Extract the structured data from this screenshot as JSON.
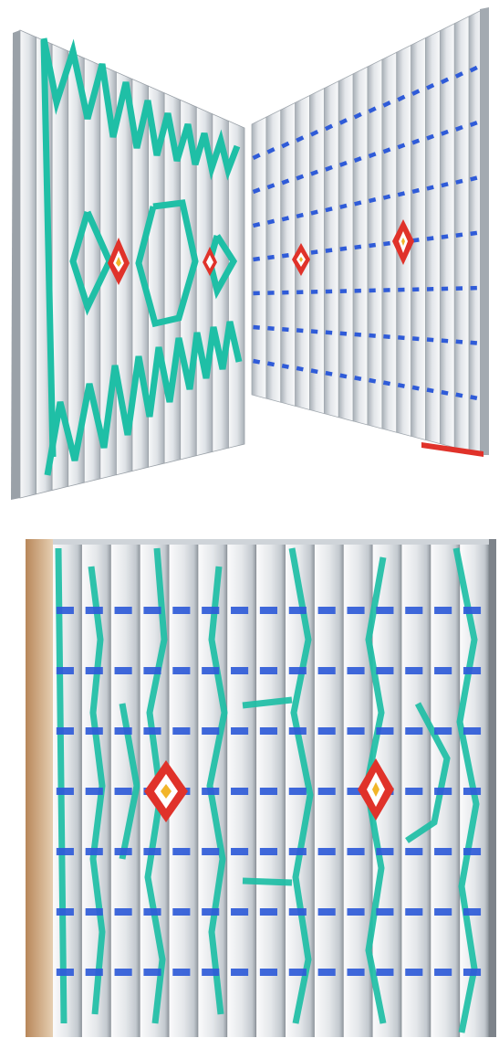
{
  "colors": {
    "background": "#ffffff",
    "panel_light": "#e9ecef",
    "panel_mid": "#c9ced4",
    "panel_shadow": "#8f969e",
    "frame_edge": "#7d838a",
    "turquoise": "#1fbfa6",
    "blue": "#2f5bd8",
    "red": "#e0322a",
    "yellow": "#f2b52a"
  },
  "views": [
    {
      "name": "angled-left-view",
      "pattern": "turquoise-zigzag"
    },
    {
      "name": "angled-right-view",
      "pattern": "blue-grid"
    },
    {
      "name": "frontal-view",
      "pattern": "combined"
    }
  ],
  "design": {
    "slat_count": 14,
    "blue_rows": 7,
    "diamond_count": 2
  }
}
